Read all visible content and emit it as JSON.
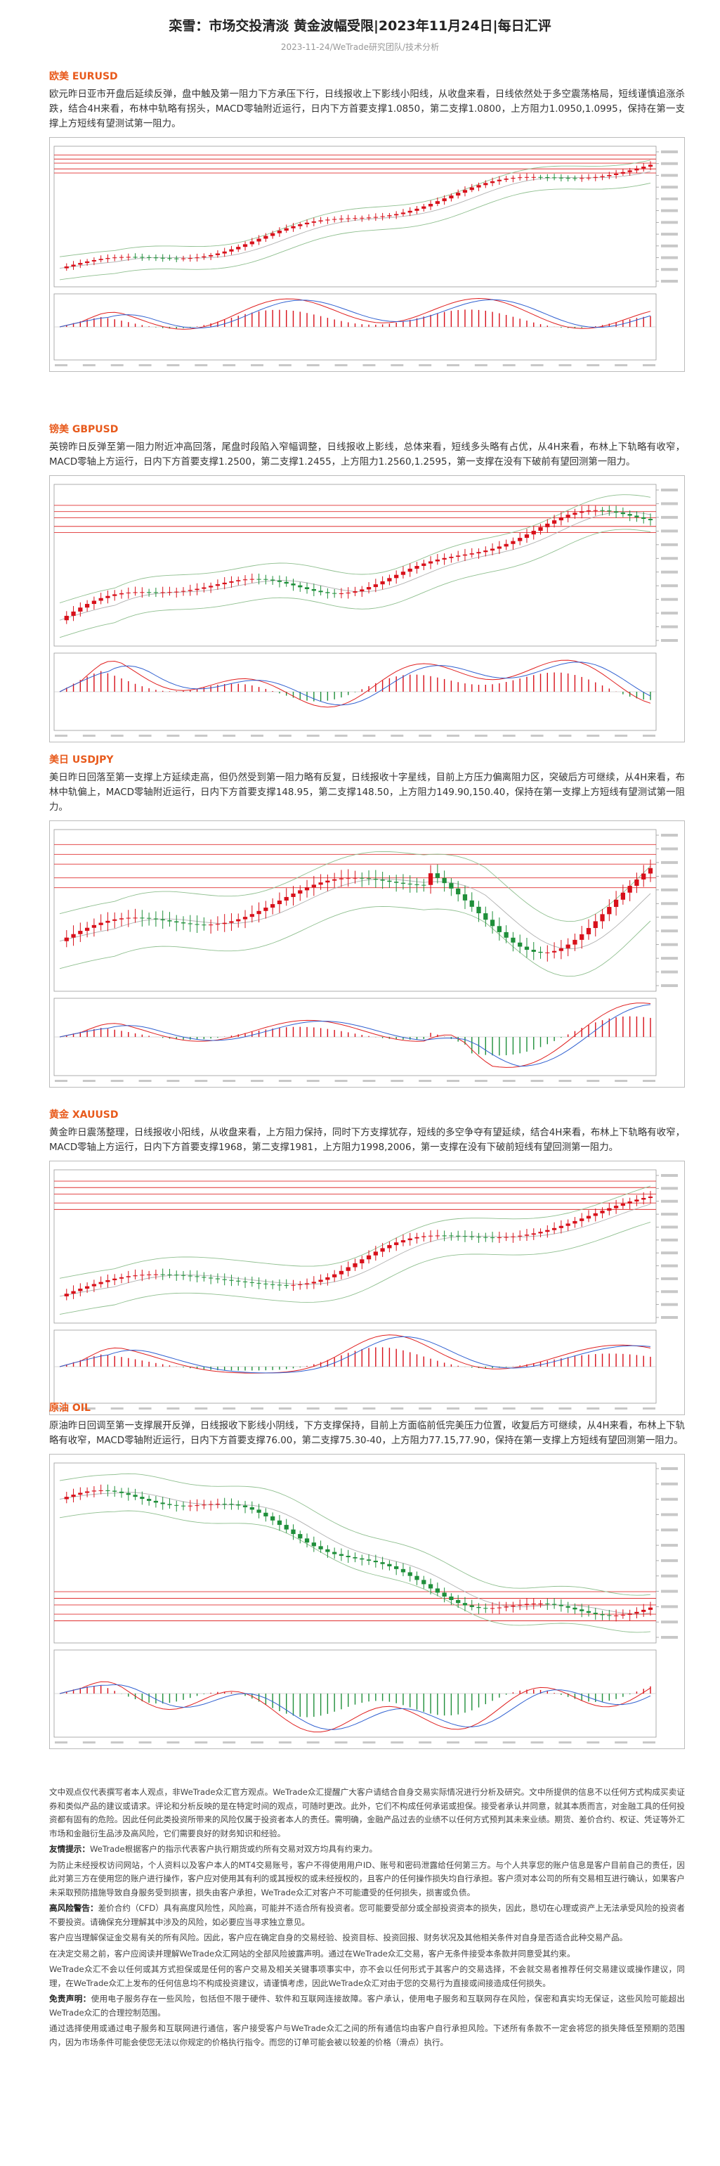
{
  "header": {
    "title": "栾雪：市场交投清淡 黄金波幅受限|2023年11月24日|每日汇评",
    "subtitle": "2023-11-24/WeTrade研究团队/技术分析"
  },
  "sections": [
    {
      "heading": "欧美 EURUSD",
      "text": "欧元昨日亚市开盘后延续反弹，盘中触及第一阻力下方承压下行，日线报收上下影线小阳线，从收盘来看，日线依然处于多空震荡格局，短线谨慎追涨杀跌，结合4H来看，布林中轨略有拐头，MACD零轴附近运行，日内下方首要支撑1.0850，第二支撑1.0800，上方阻力1.0950,1.0995，保持在第一支撑上方短线有望测试第一阻力。"
    },
    {
      "heading": "镑美 GBPUSD",
      "text": "英镑昨日反弹至第一阻力附近冲高回落，尾盘时段陷入窄幅调整，日线报收上影线，总体来看，短线多头略有占优，从4H来看，布林上下轨略有收窄，MACD零轴上方运行，日内下方首要支撑1.2500，第二支撑1.2455，上方阻力1.2560,1.2595，第一支撑在没有下破前有望回测第一阻力。"
    },
    {
      "heading": "美日 USDJPY",
      "text": "美日昨日回落至第一支撑上方延续走高，但仍然受到第一阻力略有反复，日线报收十字星线，目前上方压力偏离阻力区，突破后方可继续，从4H来看，布林中轨偏上，MACD零轴附近运行，日内下方首要支撑148.95，第二支撑148.50，上方阻力149.90,150.40，保持在第一支撑上方短线有望测试第一阻力。"
    },
    {
      "heading": "黄金 XAUUSD",
      "text": "黄金昨日震荡整理，日线报收小阳线，从收盘来看，上方阻力保持，同时下方支撑犹存，短线的多空争夺有望延续，结合4H来看，布林上下轨略有收窄，MACD零轴上方运行，日内下方首要支撑1968，第二支撑1981，上方阻力1998,2006，第一支撑在没有下破前短线有望回测第一阻力。"
    },
    {
      "heading": "原油 OIL",
      "text": "原油昨日回调至第一支撑展开反弹，日线报收下影线小阴线，下方支撑保持，目前上方面临前低完美压力位置，收复后方可继续，从4H来看，布林上下轨略有收窄，MACD零轴附近运行，日内下方首要支撑76.00，第二支撑75.30-40，上方阻力77.15,77.90，保持在第一支撑上方短线有望回测第一阻力。"
    }
  ],
  "disclaimer": [
    {
      "text": "文中观点仅代表撰写者本人观点，非WeTrade众汇官方观点。WeTrade众汇提醒广大客户请结合自身交易实际情况进行分析及研究。文中所提供的信息不以任何方式构成买卖证券和类似产品的建议或请求。评论和分析反映的是在特定时间的观点，可随时更改。此外，它们不构成任何承诺或担保。接受者承认并同意，就其本质而言，对金融工具的任何投资都有固有的危险。因此任何此类投资所带来的风险仅属于投资者本人的责任。需明确，金融产品过去的业绩不以任何方式预判其未来业绩。期货、差价合约、权证、凭证等外汇市场和金融衍生品涉及高风险，它们需要良好的财务知识和经验。"
    },
    {
      "lead": "友情提示：",
      "text": "WeTrade根据客户的指示代表客户执行期货或约所有交易对双方均具有约束力。"
    },
    {
      "text": "为防止未经授权访问网站，个人资料以及客户本人的MT4交易账号，客户不得使用用户ID、账号和密码泄露给任何第三方。与个人共享您的账户信息是客户目前自己的责任，因此对第三方在使用您的账户进行操作，客户应对使用其有利的或其授权的或未经授权的，且客户的任何操作损失均自行承担。客户须对本公司的所有交易相互进行确认，如果客户未采取预防措施导致自身服务受到损害，损失由客户承担，WeTrade众汇对客户不可能遭受的任何损失，损害或负债。"
    },
    {
      "lead": "高风险警告：",
      "text": "差价合约（CFD）具有高度风险性，风险高，可能并不适合所有投资者。您可能要受部分或全部投资资本的损失，因此，恳切在心理或资产上无法承受风险的投资者不要投资。请确保充分理解其中涉及的风险，如必要应当寻求独立意见。"
    },
    {
      "text": "客户应当理解保证金交易有关的所有风险。因此，客户应在确定自身的交易经验、投资目标、投资回报、财务状况及其他相关条件对自身是否适合此种交易产品。"
    },
    {
      "text": "在决定交易之前，客户应阅读并理解WeTrade众汇网站的全部风险披露声明。通过在WeTrade众汇交易，客户无条件接受本条款并同意受其约束。"
    },
    {
      "text": "WeTrade众汇不会以任何或其方式担保或是任何的客户交易及相关关键事项事实中，亦不会以任何形式于其客户的交易选择，不会就交易者推荐任何交易建议或操作建议，同理，在WeTrade众汇上发布的任何信息均不构成投资建议，请谨慎考虑，因此WeTrade众汇对由于您的交易行为直接或间接造成任何损失。"
    },
    {
      "lead": "免责声明：",
      "text": "使用电子服务存在一些风险，包括但不限于硬件、软件和互联网连接故障。客户承认，使用电子服务和互联网存在风险，保密和真实均无保证，这些风险可能超出WeTrade众汇的合理控制范围。"
    },
    {
      "text": "通过选择使用或通过电子服务和互联网进行通信，客户接受客户与WeTrade众汇之间的所有通信均由客户自行承担风险。下述所有条款不一定会将您的损失降低至预期的范围内，因为市场条件可能会使您无法以你规定的价格执行指令。而您的订单可能会被以较差的价格（滑点）执行。"
    }
  ]
}
